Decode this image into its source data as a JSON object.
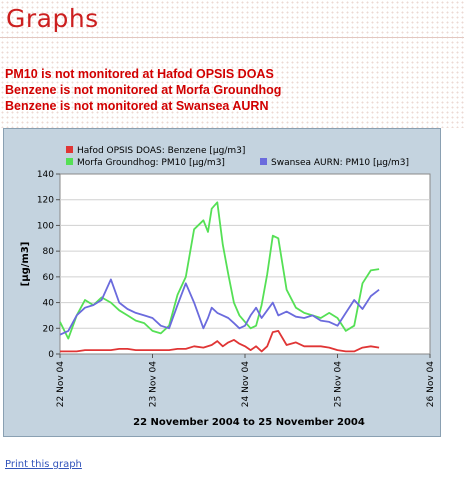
{
  "page": {
    "title": "Graphs"
  },
  "warnings": [
    "PM10 is not monitored at Hafod OPSIS DOAS",
    "Benzene is not monitored at Morfa Groundhog",
    "Benzene is not monitored at Swansea AURN"
  ],
  "chart_data": {
    "type": "line",
    "xlabel": "22 November 2004 to 25 November 2004",
    "ylabel": "[µg/m3]",
    "ylim": [
      0,
      140
    ],
    "yticks": [
      0,
      20,
      40,
      60,
      80,
      100,
      120,
      140
    ],
    "xlim": [
      0,
      4
    ],
    "xticks": [
      {
        "pos": 0,
        "label": "22 Nov 04"
      },
      {
        "pos": 1,
        "label": "23 Nov 04"
      },
      {
        "pos": 2,
        "label": "24 Nov 04"
      },
      {
        "pos": 3,
        "label": "25 Nov 04"
      },
      {
        "pos": 4,
        "label": "26 Nov 04"
      }
    ],
    "grid": "horizontal",
    "legend_position": "top",
    "series": [
      {
        "name": "Hafod OPSIS DOAS: Benzene [µg/m3]",
        "color": "#e03535",
        "x": [
          0,
          0.09,
          0.18,
          0.27,
          0.36,
          0.45,
          0.55,
          0.64,
          0.73,
          0.82,
          0.91,
          1.0,
          1.09,
          1.18,
          1.27,
          1.36,
          1.45,
          1.55,
          1.64,
          1.7,
          1.76,
          1.82,
          1.88,
          1.94,
          2.0,
          2.06,
          2.12,
          2.18,
          2.24,
          2.3,
          2.36,
          2.45,
          2.55,
          2.64,
          2.73,
          2.82,
          2.91,
          3.0,
          3.09,
          3.18,
          3.27,
          3.36,
          3.45
        ],
        "y": [
          2,
          2,
          2,
          3,
          3,
          3,
          3,
          4,
          4,
          3,
          3,
          3,
          3,
          3,
          4,
          4,
          6,
          5,
          7,
          10,
          6,
          9,
          11,
          8,
          6,
          3,
          6,
          2,
          6,
          17,
          18,
          7,
          9,
          6,
          6,
          6,
          5,
          3,
          2,
          2,
          5,
          6,
          5
        ]
      },
      {
        "name": "Morfa Groundhog: PM10 [µg/m3]",
        "color": "#55e055",
        "x": [
          0,
          0.09,
          0.18,
          0.27,
          0.36,
          0.45,
          0.55,
          0.64,
          0.73,
          0.82,
          0.91,
          1.0,
          1.09,
          1.18,
          1.27,
          1.36,
          1.45,
          1.55,
          1.6,
          1.64,
          1.7,
          1.76,
          1.82,
          1.88,
          1.94,
          2.0,
          2.06,
          2.12,
          2.18,
          2.24,
          2.3,
          2.36,
          2.45,
          2.55,
          2.64,
          2.73,
          2.82,
          2.91,
          3.0,
          3.09,
          3.18,
          3.27,
          3.36,
          3.45
        ],
        "y": [
          25,
          12,
          30,
          42,
          38,
          44,
          40,
          34,
          30,
          26,
          24,
          18,
          16,
          22,
          46,
          60,
          97,
          104,
          95,
          113,
          118,
          85,
          62,
          40,
          30,
          25,
          20,
          22,
          38,
          62,
          92,
          90,
          50,
          36,
          32,
          30,
          28,
          32,
          28,
          18,
          22,
          55,
          65,
          66
        ]
      },
      {
        "name": "Swansea AURN: PM10 [µg/m3]",
        "color": "#6b6bdd",
        "x": [
          0,
          0.09,
          0.18,
          0.27,
          0.36,
          0.45,
          0.55,
          0.64,
          0.73,
          0.82,
          0.91,
          1.0,
          1.09,
          1.18,
          1.27,
          1.36,
          1.45,
          1.55,
          1.6,
          1.64,
          1.7,
          1.76,
          1.82,
          1.88,
          1.94,
          2.0,
          2.06,
          2.12,
          2.18,
          2.24,
          2.3,
          2.36,
          2.45,
          2.55,
          2.64,
          2.73,
          2.82,
          2.91,
          3.0,
          3.09,
          3.18,
          3.27,
          3.36,
          3.45
        ],
        "y": [
          15,
          18,
          30,
          36,
          38,
          42,
          58,
          40,
          35,
          32,
          30,
          28,
          22,
          20,
          38,
          55,
          40,
          20,
          28,
          36,
          32,
          30,
          28,
          24,
          20,
          22,
          30,
          36,
          28,
          34,
          40,
          30,
          33,
          29,
          28,
          30,
          26,
          25,
          22,
          32,
          42,
          35,
          45,
          50
        ]
      }
    ]
  },
  "footer": {
    "print_link": "Print this graph"
  }
}
